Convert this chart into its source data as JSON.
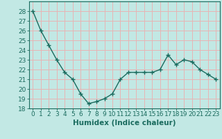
{
  "x": [
    0,
    1,
    2,
    3,
    4,
    5,
    6,
    7,
    8,
    9,
    10,
    11,
    12,
    13,
    14,
    15,
    16,
    17,
    18,
    19,
    20,
    21,
    22,
    23
  ],
  "y": [
    28,
    26,
    24.5,
    23,
    21.7,
    21,
    19.5,
    18.5,
    18.7,
    19,
    19.5,
    21,
    21.7,
    21.7,
    21.7,
    21.7,
    22,
    23.5,
    22.5,
    23,
    22.8,
    22,
    21.5,
    21
  ],
  "line_color": "#1a6b5e",
  "marker": "+",
  "marker_size": 4,
  "bg_color": "#c2e8e4",
  "grid_color": "#e8b4b4",
  "xlabel": "Humidex (Indice chaleur)",
  "ylim": [
    18,
    29
  ],
  "xlim": [
    -0.5,
    23.5
  ],
  "yticks": [
    18,
    19,
    20,
    21,
    22,
    23,
    24,
    25,
    26,
    27,
    28
  ],
  "xtick_labels": [
    "0",
    "1",
    "2",
    "3",
    "4",
    "5",
    "6",
    "7",
    "8",
    "9",
    "10",
    "11",
    "12",
    "13",
    "14",
    "15",
    "16",
    "17",
    "18",
    "19",
    "20",
    "21",
    "22",
    "23"
  ],
  "label_fontsize": 7.5,
  "tick_fontsize": 6.5
}
